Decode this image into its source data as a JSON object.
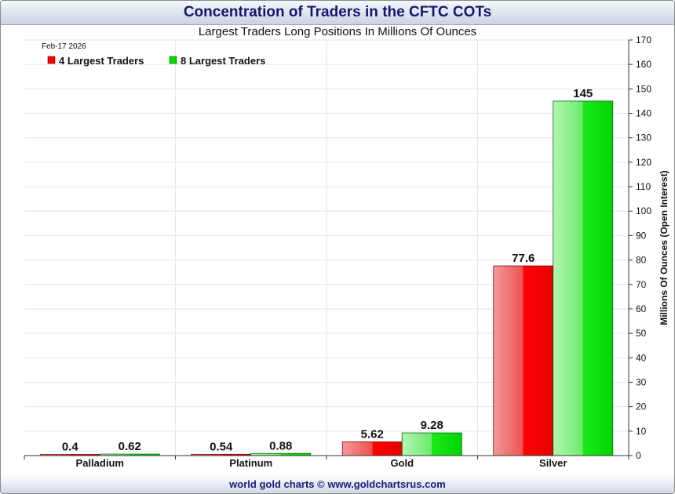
{
  "header": {
    "title": "Concentration of Traders in the CFTC COTs",
    "subtitle": "Largest Traders Long Positions In Millions Of Ounces"
  },
  "footer": {
    "credit": "world gold charts © www.goldchartsrus.com"
  },
  "colors": {
    "red": "#ff0000",
    "green": "#00dd00",
    "title_text": "#16166e",
    "grid": "#e2e6ee"
  },
  "chart_data": {
    "type": "bar",
    "date": "Feb-17  2026",
    "categories": [
      "Palladium",
      "Platinum",
      "Gold",
      "Silver"
    ],
    "series": [
      {
        "name": "4 Largest Traders",
        "values": [
          0.4,
          0.54,
          5.62,
          77.6
        ],
        "labels": [
          "0.4",
          "0.54",
          "5.62",
          "77.6"
        ]
      },
      {
        "name": "8 Largest Traders",
        "values": [
          0.62,
          0.88,
          9.28,
          145
        ],
        "labels": [
          "0.62",
          "0.88",
          "9.28",
          "145"
        ]
      }
    ],
    "ylabel": "Millions Of Ounces (Open Interest)",
    "ylim": [
      0,
      170
    ],
    "ytick_step": 10,
    "y_axis_side": "right",
    "grid": true,
    "legend_position": "top-left"
  }
}
